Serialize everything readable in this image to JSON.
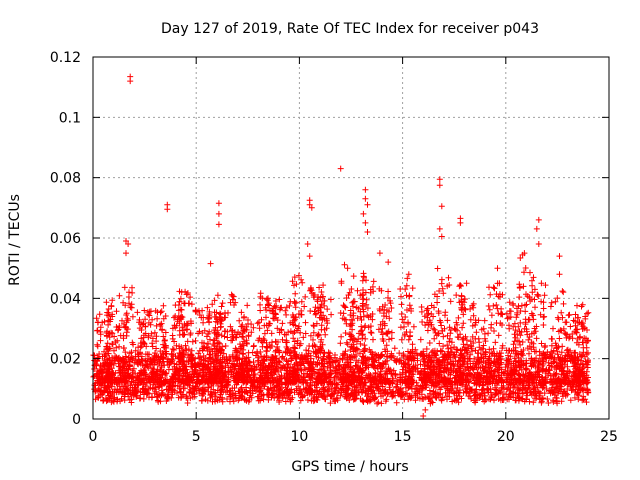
{
  "chart_data": {
    "type": "scatter",
    "title": "Day 127 of 2019, Rate Of TEC Index for receiver p043",
    "xlabel": "GPS time / hours",
    "ylabel": "ROTI / TECUs",
    "xlim": [
      0,
      25
    ],
    "ylim": [
      0,
      0.12
    ],
    "xticks": [
      0,
      5,
      10,
      15,
      20,
      25
    ],
    "yticks": [
      0,
      0.02,
      0.04,
      0.06,
      0.08,
      0.1,
      0.12
    ],
    "xtick_labels": [
      "0",
      "5",
      "10",
      "15",
      "20",
      "25"
    ],
    "ytick_labels": [
      "0",
      "0.02",
      "0.04",
      "0.06",
      "0.08",
      "0.1",
      "0.12"
    ],
    "grid": true,
    "marker": "+",
    "series": [
      {
        "name": "ROTI",
        "color": "#ff0000",
        "x_range": [
          0,
          24
        ],
        "baseline_typical": [
          0.005,
          0.02
        ],
        "notable_points": [
          {
            "x": 1.8,
            "y": 0.1135
          },
          {
            "x": 1.8,
            "y": 0.112
          },
          {
            "x": 1.6,
            "y": 0.059
          },
          {
            "x": 1.7,
            "y": 0.058
          },
          {
            "x": 1.6,
            "y": 0.055
          },
          {
            "x": 3.6,
            "y": 0.071
          },
          {
            "x": 3.6,
            "y": 0.0695
          },
          {
            "x": 6.1,
            "y": 0.0715
          },
          {
            "x": 6.1,
            "y": 0.068
          },
          {
            "x": 6.1,
            "y": 0.0645
          },
          {
            "x": 5.7,
            "y": 0.0515
          },
          {
            "x": 10.5,
            "y": 0.0725
          },
          {
            "x": 10.5,
            "y": 0.071
          },
          {
            "x": 10.6,
            "y": 0.07
          },
          {
            "x": 10.4,
            "y": 0.058
          },
          {
            "x": 10.5,
            "y": 0.054
          },
          {
            "x": 12.0,
            "y": 0.083
          },
          {
            "x": 13.2,
            "y": 0.076
          },
          {
            "x": 13.2,
            "y": 0.073
          },
          {
            "x": 13.3,
            "y": 0.071
          },
          {
            "x": 13.1,
            "y": 0.068
          },
          {
            "x": 13.2,
            "y": 0.065
          },
          {
            "x": 13.3,
            "y": 0.062
          },
          {
            "x": 13.9,
            "y": 0.055
          },
          {
            "x": 14.3,
            "y": 0.052
          },
          {
            "x": 16.8,
            "y": 0.0795
          },
          {
            "x": 16.8,
            "y": 0.0775
          },
          {
            "x": 16.9,
            "y": 0.0705
          },
          {
            "x": 16.8,
            "y": 0.063
          },
          {
            "x": 16.9,
            "y": 0.0605
          },
          {
            "x": 17.8,
            "y": 0.0665
          },
          {
            "x": 17.8,
            "y": 0.065
          },
          {
            "x": 21.6,
            "y": 0.066
          },
          {
            "x": 21.5,
            "y": 0.063
          },
          {
            "x": 21.6,
            "y": 0.058
          },
          {
            "x": 20.9,
            "y": 0.055
          },
          {
            "x": 22.6,
            "y": 0.054
          },
          {
            "x": 22.6,
            "y": 0.048
          },
          {
            "x": 19.6,
            "y": 0.05
          },
          {
            "x": 15.3,
            "y": 0.048
          },
          {
            "x": 18.1,
            "y": 0.045
          },
          {
            "x": 16.0,
            "y": 0.001
          },
          {
            "x": 16.1,
            "y": 0.003
          }
        ],
        "clusters": [
          {
            "x": 0.5,
            "peak": 0.035
          },
          {
            "x": 1.0,
            "peak": 0.04
          },
          {
            "x": 1.6,
            "peak": 0.045
          },
          {
            "x": 2.5,
            "peak": 0.036
          },
          {
            "x": 3.2,
            "peak": 0.038
          },
          {
            "x": 4.2,
            "peak": 0.04
          },
          {
            "x": 4.5,
            "peak": 0.043
          },
          {
            "x": 5.3,
            "peak": 0.04
          },
          {
            "x": 5.9,
            "peak": 0.04
          },
          {
            "x": 6.2,
            "peak": 0.042
          },
          {
            "x": 7.0,
            "peak": 0.042
          },
          {
            "x": 7.5,
            "peak": 0.038
          },
          {
            "x": 8.3,
            "peak": 0.042
          },
          {
            "x": 8.8,
            "peak": 0.04
          },
          {
            "x": 9.5,
            "peak": 0.04
          },
          {
            "x": 10.0,
            "peak": 0.05
          },
          {
            "x": 10.8,
            "peak": 0.045
          },
          {
            "x": 11.2,
            "peak": 0.042
          },
          {
            "x": 12.3,
            "peak": 0.052
          },
          {
            "x": 12.8,
            "peak": 0.045
          },
          {
            "x": 13.3,
            "peak": 0.05
          },
          {
            "x": 14.2,
            "peak": 0.045
          },
          {
            "x": 15.2,
            "peak": 0.047
          },
          {
            "x": 16.2,
            "peak": 0.038
          },
          {
            "x": 16.9,
            "peak": 0.05
          },
          {
            "x": 17.6,
            "peak": 0.045
          },
          {
            "x": 18.1,
            "peak": 0.04
          },
          {
            "x": 18.8,
            "peak": 0.033
          },
          {
            "x": 19.5,
            "peak": 0.046
          },
          {
            "x": 20.4,
            "peak": 0.04
          },
          {
            "x": 21.0,
            "peak": 0.055
          },
          {
            "x": 21.6,
            "peak": 0.045
          },
          {
            "x": 22.5,
            "peak": 0.043
          },
          {
            "x": 23.2,
            "peak": 0.035
          },
          {
            "x": 23.7,
            "peak": 0.038
          }
        ]
      }
    ]
  }
}
